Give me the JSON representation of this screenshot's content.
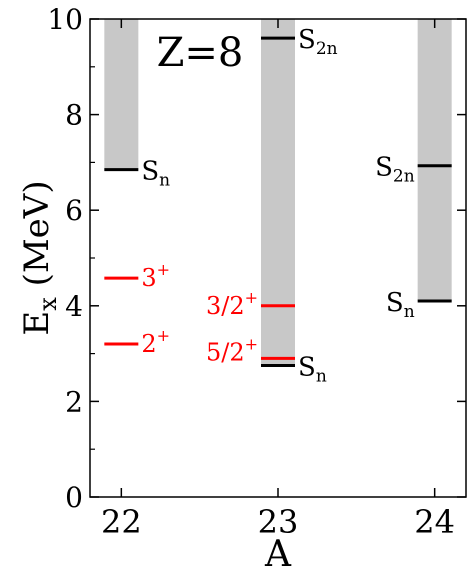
{
  "chart_data": {
    "type": "level-scheme",
    "title": "",
    "annotation": "Z=8",
    "xlabel": "A",
    "ylabel": {
      "main": "E",
      "sub": "x",
      "rest": " (MeV)"
    },
    "xlim": [
      21.8,
      24.2
    ],
    "ylim": [
      0,
      10
    ],
    "x_ticks": [
      22,
      23,
      24
    ],
    "y_ticks": [
      0,
      2,
      4,
      6,
      8,
      10
    ],
    "colors": {
      "band": "#c8c8c8",
      "threshold": "#000000",
      "state": "#ff0000",
      "axis": "#000000"
    },
    "bands": [
      {
        "A": 22,
        "from": 6.85,
        "to": 10
      },
      {
        "A": 23,
        "from": 2.75,
        "to": 10
      },
      {
        "A": 24,
        "from": 4.1,
        "to": 10
      }
    ],
    "levels": [
      {
        "A": 22,
        "energy": 6.85,
        "kind": "threshold",
        "label": {
          "main": "S",
          "sub": "n",
          "sup": ""
        },
        "side": "right"
      },
      {
        "A": 22,
        "energy": 4.58,
        "kind": "state",
        "label": {
          "main": "3",
          "sub": "",
          "sup": "+"
        },
        "side": "right"
      },
      {
        "A": 22,
        "energy": 3.2,
        "kind": "state",
        "label": {
          "main": "2",
          "sub": "",
          "sup": "+"
        },
        "side": "right"
      },
      {
        "A": 23,
        "energy": 9.6,
        "kind": "threshold",
        "label": {
          "main": "S",
          "sub": "2n",
          "sup": ""
        },
        "side": "right"
      },
      {
        "A": 23,
        "energy": 4.0,
        "kind": "state",
        "label": {
          "main": "3/2",
          "sub": "",
          "sup": "+"
        },
        "side": "left"
      },
      {
        "A": 23,
        "energy": 2.9,
        "kind": "state",
        "label": {
          "main": "5/2",
          "sub": "",
          "sup": "+"
        },
        "side": "left"
      },
      {
        "A": 23,
        "energy": 2.75,
        "kind": "threshold",
        "label": {
          "main": "S",
          "sub": "n",
          "sup": ""
        },
        "side": "right"
      },
      {
        "A": 24,
        "energy": 6.93,
        "kind": "threshold",
        "label": {
          "main": "S",
          "sub": "2n",
          "sup": ""
        },
        "side": "left"
      },
      {
        "A": 24,
        "energy": 4.1,
        "kind": "threshold",
        "label": {
          "main": "S",
          "sub": "n",
          "sup": ""
        },
        "side": "left"
      }
    ]
  }
}
